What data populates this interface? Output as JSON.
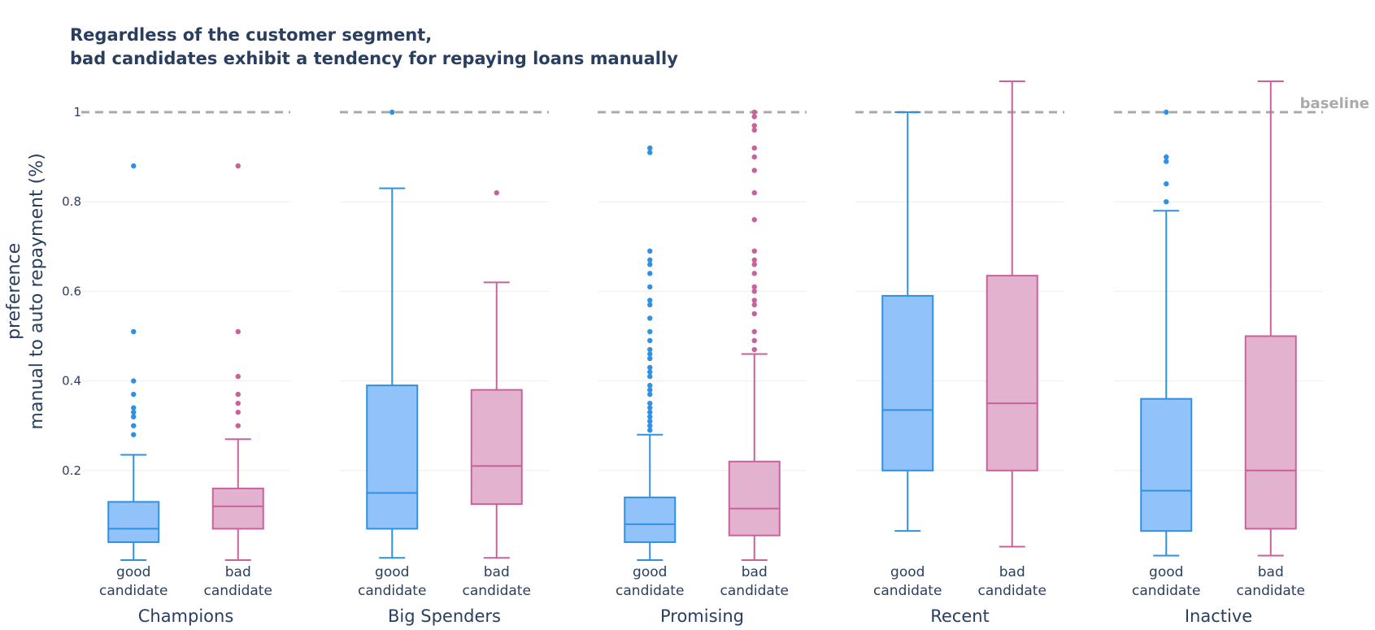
{
  "chart_data": {
    "type": "box",
    "title": [
      "Regardless of the customer segment,",
      "bad candidates exhibit a tendency for repaying loans manually"
    ],
    "ylabel": [
      "preference",
      "manual to auto repayment (%)"
    ],
    "yticks": [
      0.2,
      0.4,
      0.6,
      0.8,
      1
    ],
    "ytick_labels": [
      "0.2",
      "0.4",
      "0.6",
      "0.8",
      "1"
    ],
    "ylim": [
      0,
      1.07
    ],
    "baseline": {
      "value": 1,
      "label": "baseline"
    },
    "colors": {
      "good": "#2e91e5",
      "good_fill": "#91c3fa",
      "bad": "#c9629b",
      "bad_fill": "#e3b2cf",
      "baseline": "#aaaaaa",
      "grid": "#eeeeee"
    },
    "groups": [
      {
        "key": "good",
        "label": [
          "good",
          "candidate"
        ]
      },
      {
        "key": "bad",
        "label": [
          "bad",
          "candidate"
        ]
      }
    ],
    "segments": [
      {
        "name": "Champions",
        "good": {
          "lower": 0.0,
          "q1": 0.04,
          "median": 0.07,
          "q3": 0.13,
          "upper": 0.235,
          "outliers": [
            0.28,
            0.3,
            0.32,
            0.33,
            0.34,
            0.37,
            0.4,
            0.51,
            0.88
          ]
        },
        "bad": {
          "lower": 0.0,
          "q1": 0.07,
          "median": 0.12,
          "q3": 0.16,
          "upper": 0.27,
          "outliers": [
            0.3,
            0.33,
            0.35,
            0.37,
            0.41,
            0.51,
            0.88
          ]
        }
      },
      {
        "name": "Big Spenders",
        "good": {
          "lower": 0.005,
          "q1": 0.07,
          "median": 0.15,
          "q3": 0.39,
          "upper": 0.83,
          "outliers": [
            1.0
          ]
        },
        "bad": {
          "lower": 0.005,
          "q1": 0.125,
          "median": 0.21,
          "q3": 0.38,
          "upper": 0.62,
          "outliers": [
            0.82
          ]
        }
      },
      {
        "name": "Promising",
        "good": {
          "lower": 0.0,
          "q1": 0.04,
          "median": 0.08,
          "q3": 0.14,
          "upper": 0.28,
          "outliers": [
            0.29,
            0.3,
            0.31,
            0.32,
            0.33,
            0.34,
            0.35,
            0.37,
            0.38,
            0.39,
            0.41,
            0.42,
            0.43,
            0.45,
            0.46,
            0.47,
            0.49,
            0.51,
            0.54,
            0.57,
            0.58,
            0.61,
            0.64,
            0.66,
            0.67,
            0.69,
            0.91,
            0.92
          ]
        },
        "bad": {
          "lower": 0.0,
          "q1": 0.055,
          "median": 0.115,
          "q3": 0.22,
          "upper": 0.46,
          "outliers": [
            0.47,
            0.49,
            0.51,
            0.55,
            0.57,
            0.58,
            0.6,
            0.61,
            0.64,
            0.66,
            0.67,
            0.69,
            0.76,
            0.82,
            0.87,
            0.9,
            0.92,
            0.96,
            0.97,
            0.99,
            1.0
          ]
        }
      },
      {
        "name": "Recent",
        "good": {
          "lower": 0.065,
          "q1": 0.2,
          "median": 0.335,
          "q3": 0.59,
          "upper": 1.0,
          "outliers": []
        },
        "bad": {
          "lower": 0.03,
          "q1": 0.2,
          "median": 0.35,
          "q3": 0.635,
          "upper": 1.07,
          "outliers": []
        }
      },
      {
        "name": "Inactive",
        "good": {
          "lower": 0.01,
          "q1": 0.065,
          "median": 0.155,
          "q3": 0.36,
          "upper": 0.78,
          "outliers": [
            0.8,
            0.84,
            0.89,
            0.9,
            1.0
          ]
        },
        "bad": {
          "lower": 0.01,
          "q1": 0.07,
          "median": 0.2,
          "q3": 0.5,
          "upper": 1.07,
          "outliers": []
        }
      }
    ]
  }
}
